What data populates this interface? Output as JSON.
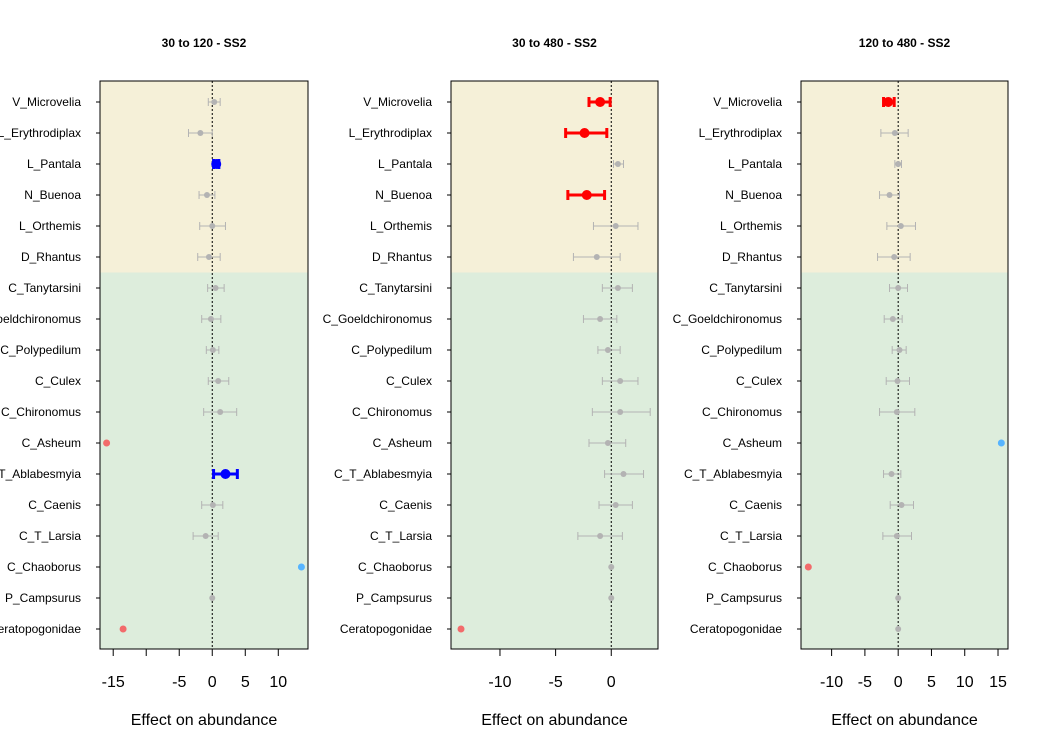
{
  "chart_data": [
    {
      "type": "forest",
      "title": "30 to 120 - SS2",
      "xlabel": "Effect on abundance",
      "xlim": [
        -17,
        14.5
      ],
      "xticks": [
        -15,
        -10,
        -5,
        0,
        5,
        10
      ],
      "xtick_labels": [
        "-15",
        "",
        "-5",
        "0",
        "5",
        "10"
      ],
      "taxa": [
        "V_Microvelia",
        "L_Erythrodiplax",
        "L_Pantala",
        "N_Buenoa",
        "L_Orthemis",
        "D_Rhantus",
        "C_Tanytarsini",
        "C_Goeldchironomus",
        "C_Polypedilum",
        "C_Culex",
        "C_Chironomus",
        "C_Asheum",
        "C_T_Ablabesmyia",
        "C_Caenis",
        "C_T_Larsia",
        "C_Chaoborus",
        "P_Campsurus",
        "Ceratopogonidae"
      ],
      "bands": [
        {
          "from": "V_Microvelia",
          "to": "D_Rhantus",
          "color": "#F5F0D8"
        },
        {
          "from": "C_Tanytarsini",
          "to": "Ceratopogonidae",
          "color": "#DDEDDC"
        }
      ],
      "estimates": [
        {
          "taxon": "V_Microvelia",
          "est": 0.3,
          "lo": -0.6,
          "hi": 1.2,
          "status": "ns"
        },
        {
          "taxon": "L_Erythrodiplax",
          "est": -1.8,
          "lo": -3.6,
          "hi": 0.0,
          "status": "ns"
        },
        {
          "taxon": "L_Pantala",
          "est": 0.6,
          "lo": 0.2,
          "hi": 1.0,
          "status": "positive"
        },
        {
          "taxon": "N_Buenoa",
          "est": -0.8,
          "lo": -2.0,
          "hi": 0.4,
          "status": "ns"
        },
        {
          "taxon": "L_Orthemis",
          "est": 0.0,
          "lo": -1.9,
          "hi": 2.0,
          "status": "ns"
        },
        {
          "taxon": "D_Rhantus",
          "est": -0.5,
          "lo": -2.2,
          "hi": 1.2,
          "status": "ns"
        },
        {
          "taxon": "C_Tanytarsini",
          "est": 0.5,
          "lo": -0.7,
          "hi": 1.8,
          "status": "ns"
        },
        {
          "taxon": "C_Goeldchironomus",
          "est": -0.2,
          "lo": -1.6,
          "hi": 1.3,
          "status": "ns"
        },
        {
          "taxon": "C_Polypedilum",
          "est": 0.1,
          "lo": -0.9,
          "hi": 1.0,
          "status": "ns"
        },
        {
          "taxon": "C_Culex",
          "est": 0.9,
          "lo": -0.6,
          "hi": 2.5,
          "status": "ns"
        },
        {
          "taxon": "C_Chironomus",
          "est": 1.2,
          "lo": -1.3,
          "hi": 3.7,
          "status": "ns"
        },
        {
          "taxon": "C_Asheum",
          "est": -16.0,
          "status": "negative-extreme"
        },
        {
          "taxon": "C_T_Ablabesmyia",
          "est": 2.0,
          "lo": 0.2,
          "hi": 3.8,
          "status": "positive"
        },
        {
          "taxon": "C_Caenis",
          "est": 0.1,
          "lo": -1.6,
          "hi": 1.6,
          "status": "ns"
        },
        {
          "taxon": "C_T_Larsia",
          "est": -1.0,
          "lo": -2.9,
          "hi": 0.9,
          "status": "ns"
        },
        {
          "taxon": "C_Chaoborus",
          "est": 13.5,
          "status": "positive-extreme"
        },
        {
          "taxon": "P_Campsurus",
          "est": 0.0,
          "status": "ns"
        },
        {
          "taxon": "Ceratopogonidae",
          "est": -13.5,
          "status": "negative-extreme"
        }
      ]
    },
    {
      "type": "forest",
      "title": "30 to 480 - SS2",
      "xlabel": "Effect on abundance",
      "xlim": [
        -14.4,
        4.2
      ],
      "xticks": [
        -10,
        -5,
        0
      ],
      "xtick_labels": [
        "-10",
        "-5",
        "0"
      ],
      "taxa": [
        "V_Microvelia",
        "L_Erythrodiplax",
        "L_Pantala",
        "N_Buenoa",
        "L_Orthemis",
        "D_Rhantus",
        "C_Tanytarsini",
        "C_Goeldchironomus",
        "C_Polypedilum",
        "C_Culex",
        "C_Chironomus",
        "C_Asheum",
        "C_T_Ablabesmyia",
        "C_Caenis",
        "C_T_Larsia",
        "C_Chaoborus",
        "P_Campsurus",
        "Ceratopogonidae"
      ],
      "bands": [
        {
          "from": "V_Microvelia",
          "to": "D_Rhantus",
          "color": "#F5F0D8"
        },
        {
          "from": "C_Tanytarsini",
          "to": "Ceratopogonidae",
          "color": "#DDEDDC"
        }
      ],
      "estimates": [
        {
          "taxon": "V_Microvelia",
          "est": -1.0,
          "lo": -2.0,
          "hi": -0.1,
          "status": "negative"
        },
        {
          "taxon": "L_Erythrodiplax",
          "est": -2.4,
          "lo": -4.1,
          "hi": -0.4,
          "status": "negative"
        },
        {
          "taxon": "L_Pantala",
          "est": 0.6,
          "lo": 0.2,
          "hi": 1.1,
          "status": "ns"
        },
        {
          "taxon": "N_Buenoa",
          "est": -2.2,
          "lo": -3.9,
          "hi": -0.6,
          "status": "negative"
        },
        {
          "taxon": "L_Orthemis",
          "est": 0.4,
          "lo": -1.6,
          "hi": 2.4,
          "status": "ns"
        },
        {
          "taxon": "D_Rhantus",
          "est": -1.3,
          "lo": -3.4,
          "hi": 0.8,
          "status": "ns"
        },
        {
          "taxon": "C_Tanytarsini",
          "est": 0.6,
          "lo": -0.8,
          "hi": 1.9,
          "status": "ns"
        },
        {
          "taxon": "C_Goeldchironomus",
          "est": -1.0,
          "lo": -2.5,
          "hi": 0.5,
          "status": "ns"
        },
        {
          "taxon": "C_Polypedilum",
          "est": -0.3,
          "lo": -1.2,
          "hi": 0.8,
          "status": "ns"
        },
        {
          "taxon": "C_Culex",
          "est": 0.8,
          "lo": -0.8,
          "hi": 2.4,
          "status": "ns"
        },
        {
          "taxon": "C_Chironomus",
          "est": 0.8,
          "lo": -1.7,
          "hi": 3.5,
          "status": "ns"
        },
        {
          "taxon": "C_Asheum",
          "est": -0.3,
          "lo": -2.0,
          "hi": 1.3,
          "status": "ns"
        },
        {
          "taxon": "C_T_Ablabesmyia",
          "est": 1.1,
          "lo": -0.6,
          "hi": 2.9,
          "status": "ns"
        },
        {
          "taxon": "C_Caenis",
          "est": 0.4,
          "lo": -1.1,
          "hi": 1.9,
          "status": "ns"
        },
        {
          "taxon": "C_T_Larsia",
          "est": -1.0,
          "lo": -3.0,
          "hi": 1.0,
          "status": "ns"
        },
        {
          "taxon": "C_Chaoborus",
          "est": 0.0,
          "status": "ns"
        },
        {
          "taxon": "P_Campsurus",
          "est": 0.0,
          "status": "ns"
        },
        {
          "taxon": "Ceratopogonidae",
          "est": -13.5,
          "status": "negative-extreme"
        }
      ]
    },
    {
      "type": "forest",
      "title": "120 to 480 - SS2",
      "xlabel": "Effect on abundance",
      "xlim": [
        -14.6,
        16.5
      ],
      "xticks": [
        -10,
        -5,
        0,
        5,
        10,
        15
      ],
      "xtick_labels": [
        "-10",
        "-5",
        "0",
        "5",
        "10",
        "15"
      ],
      "taxa": [
        "V_Microvelia",
        "L_Erythrodiplax",
        "L_Pantala",
        "N_Buenoa",
        "L_Orthemis",
        "D_Rhantus",
        "C_Tanytarsini",
        "C_Goeldchironomus",
        "C_Polypedilum",
        "C_Culex",
        "C_Chironomus",
        "C_Asheum",
        "C_T_Ablabesmyia",
        "C_Caenis",
        "C_T_Larsia",
        "C_Chaoborus",
        "P_Campsurus",
        "Ceratopogonidae"
      ],
      "bands": [
        {
          "from": "V_Microvelia",
          "to": "D_Rhantus",
          "color": "#F5F0D8"
        },
        {
          "from": "C_Tanytarsini",
          "to": "Ceratopogonidae",
          "color": "#DDEDDC"
        }
      ],
      "estimates": [
        {
          "taxon": "V_Microvelia",
          "est": -1.5,
          "lo": -2.2,
          "hi": -0.6,
          "status": "negative"
        },
        {
          "taxon": "L_Erythrodiplax",
          "est": -0.5,
          "lo": -2.6,
          "hi": 1.5,
          "status": "ns"
        },
        {
          "taxon": "L_Pantala",
          "est": 0.0,
          "lo": -0.5,
          "hi": 0.5,
          "status": "ns"
        },
        {
          "taxon": "N_Buenoa",
          "est": -1.3,
          "lo": -2.8,
          "hi": 0.2,
          "status": "ns"
        },
        {
          "taxon": "L_Orthemis",
          "est": 0.4,
          "lo": -1.7,
          "hi": 2.6,
          "status": "ns"
        },
        {
          "taxon": "D_Rhantus",
          "est": -0.6,
          "lo": -3.1,
          "hi": 1.8,
          "status": "ns"
        },
        {
          "taxon": "C_Tanytarsini",
          "est": 0.0,
          "lo": -1.3,
          "hi": 1.4,
          "status": "ns"
        },
        {
          "taxon": "C_Goeldchironomus",
          "est": -0.8,
          "lo": -2.1,
          "hi": 0.6,
          "status": "ns"
        },
        {
          "taxon": "C_Polypedilum",
          "est": 0.2,
          "lo": -0.9,
          "hi": 1.2,
          "status": "ns"
        },
        {
          "taxon": "C_Culex",
          "est": -0.1,
          "lo": -1.8,
          "hi": 1.7,
          "status": "ns"
        },
        {
          "taxon": "C_Chironomus",
          "est": -0.2,
          "lo": -2.8,
          "hi": 2.5,
          "status": "ns"
        },
        {
          "taxon": "C_Asheum",
          "est": 15.5,
          "status": "positive-extreme"
        },
        {
          "taxon": "C_T_Ablabesmyia",
          "est": -1.0,
          "lo": -2.2,
          "hi": 0.4,
          "status": "ns"
        },
        {
          "taxon": "C_Caenis",
          "est": 0.5,
          "lo": -1.2,
          "hi": 2.3,
          "status": "ns"
        },
        {
          "taxon": "C_T_Larsia",
          "est": -0.2,
          "lo": -2.3,
          "hi": 2.0,
          "status": "ns"
        },
        {
          "taxon": "C_Chaoborus",
          "est": -13.5,
          "status": "negative-extreme"
        },
        {
          "taxon": "P_Campsurus",
          "est": 0.0,
          "status": "ns"
        },
        {
          "taxon": "Ceratopogonidae",
          "est": 0.0,
          "status": "ns"
        }
      ]
    }
  ],
  "colors": {
    "ns": "#B3B3B3",
    "positive": "#0000FF",
    "negative": "#FF0000",
    "positive-extreme": "#56B4FF",
    "negative-extreme": "#F26B6B",
    "zero-line": "#000000"
  }
}
